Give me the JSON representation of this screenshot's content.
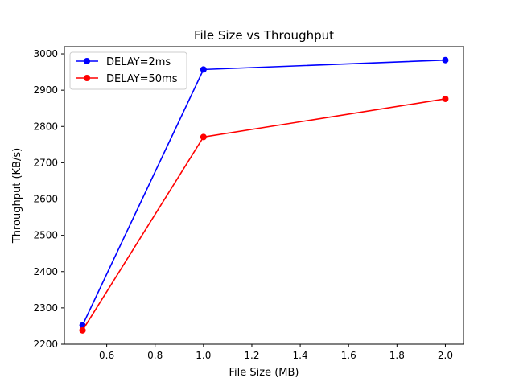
{
  "chart_data": {
    "type": "line",
    "title": "File Size vs Throughput",
    "xlabel": "File Size (MB)",
    "ylabel": "Throughput (KB/s)",
    "xlim": [
      0.425,
      2.075
    ],
    "ylim": [
      2200,
      3020
    ],
    "xticks": [
      0.6,
      0.8,
      1.0,
      1.2,
      1.4,
      1.6,
      1.8,
      2.0
    ],
    "xtick_labels": [
      "0.6",
      "0.8",
      "1.0",
      "1.2",
      "1.4",
      "1.6",
      "1.8",
      "2.0"
    ],
    "yticks": [
      2200,
      2300,
      2400,
      2500,
      2600,
      2700,
      2800,
      2900,
      3000
    ],
    "ytick_labels": [
      "2200",
      "2300",
      "2400",
      "2500",
      "2600",
      "2700",
      "2800",
      "2900",
      "3000"
    ],
    "grid": false,
    "legend_position": "top-left",
    "series": [
      {
        "name": "DELAY=2ms",
        "color": "#0000ff",
        "marker": "circle",
        "x": [
          0.5,
          1.0,
          2.0
        ],
        "y": [
          2252,
          2957,
          2983
        ]
      },
      {
        "name": "DELAY=50ms",
        "color": "#ff0000",
        "marker": "circle",
        "x": [
          0.5,
          1.0,
          2.0
        ],
        "y": [
          2238,
          2771,
          2876
        ]
      }
    ]
  }
}
